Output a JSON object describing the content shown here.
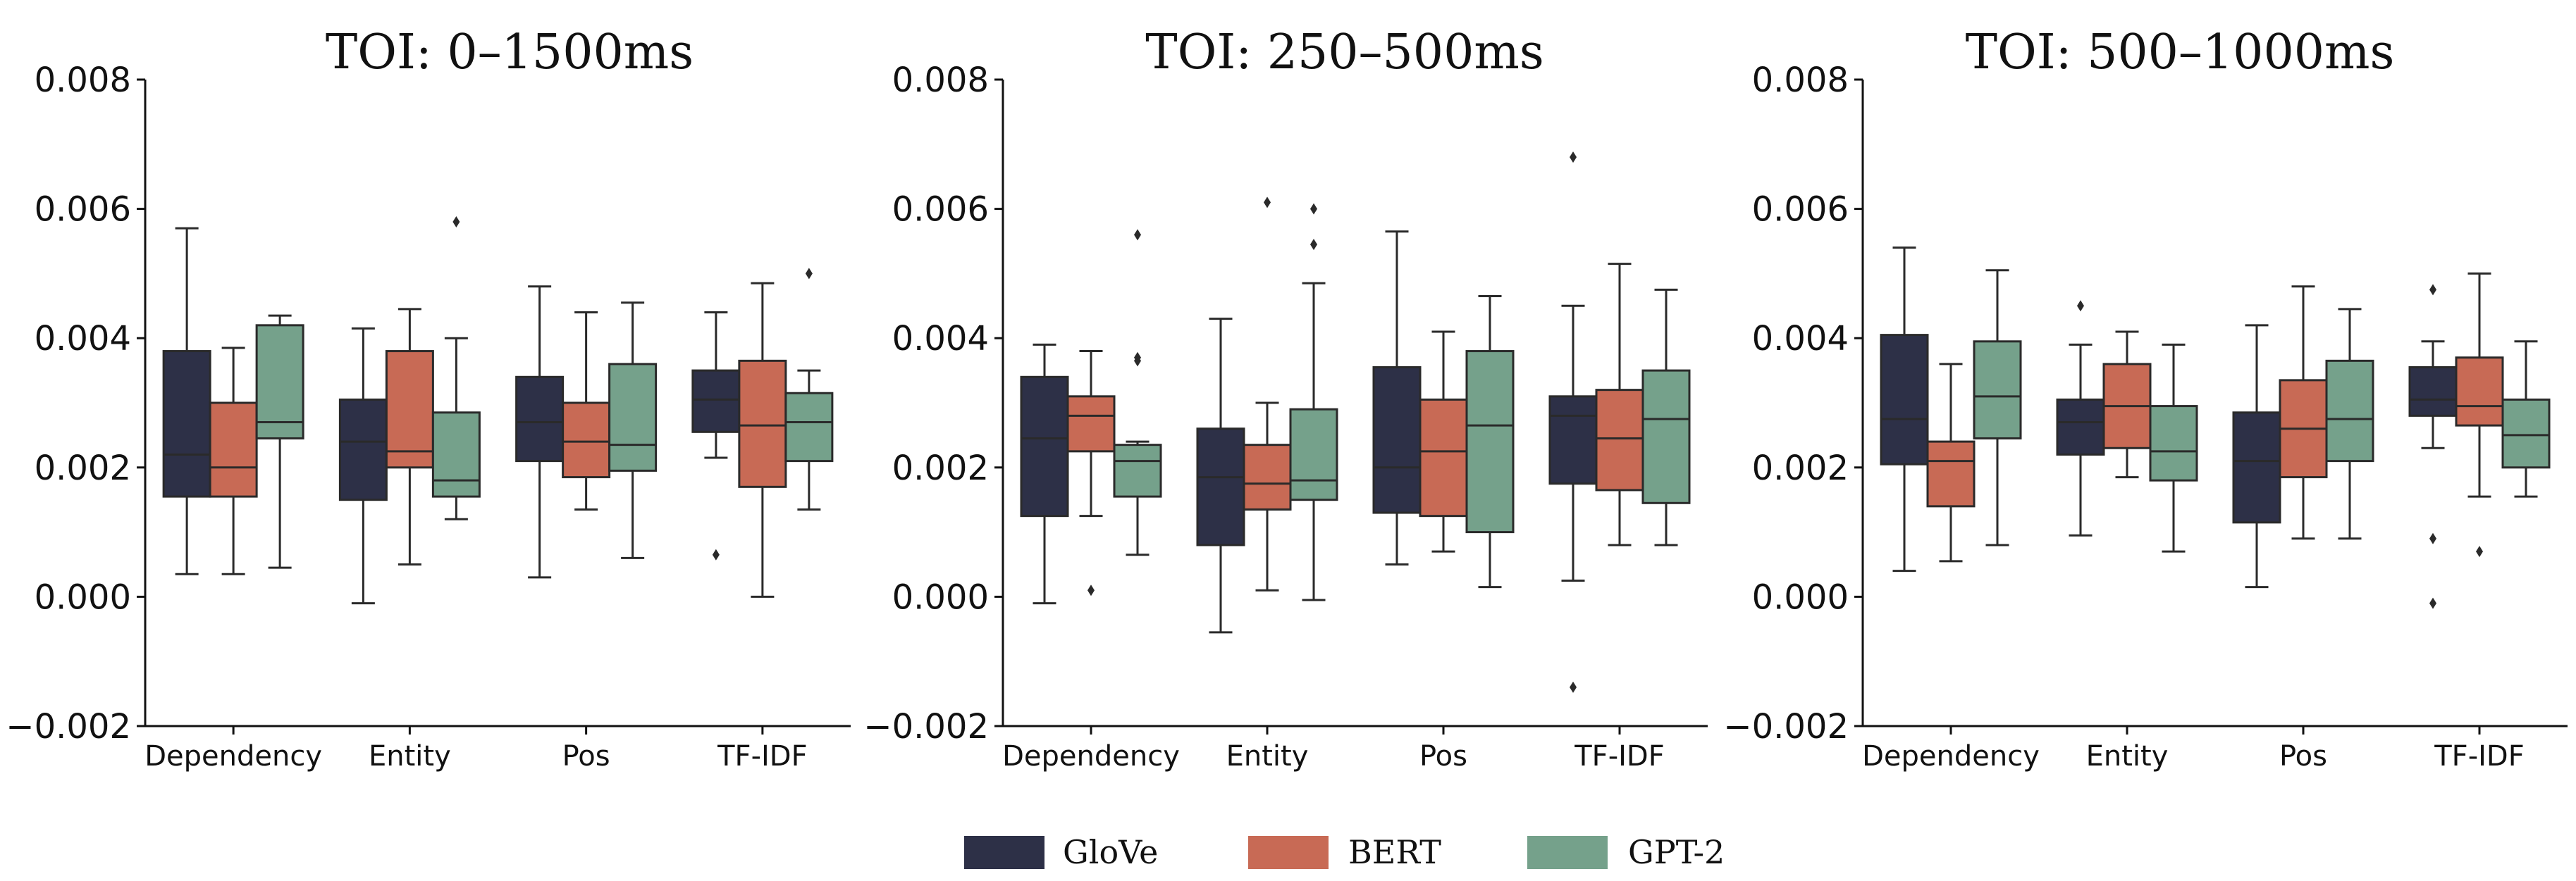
{
  "chart_data": [
    {
      "type": "box",
      "title": "TOI: 0–1500ms",
      "xlabel": "",
      "ylabel": "",
      "ylim": [
        -0.002,
        0.008
      ],
      "yticks": [
        "0.008",
        "0.006",
        "0.004",
        "0.002",
        "0.000",
        "−0.002"
      ],
      "categories": [
        "Dependency",
        "Entity",
        "Pos",
        "TF-IDF"
      ],
      "series": [
        {
          "name": "GloVe",
          "boxes": [
            {
              "q1": 0.00155,
              "median": 0.0022,
              "q3": 0.0038,
              "whislo": 0.00035,
              "whishi": 0.0057,
              "fliers": []
            },
            {
              "q1": 0.0015,
              "median": 0.0024,
              "q3": 0.00305,
              "whislo": -0.0001,
              "whishi": 0.00415,
              "fliers": []
            },
            {
              "q1": 0.0021,
              "median": 0.0027,
              "q3": 0.0034,
              "whislo": 0.0003,
              "whishi": 0.0048,
              "fliers": []
            },
            {
              "q1": 0.00255,
              "median": 0.00305,
              "q3": 0.0035,
              "whislo": 0.00215,
              "whishi": 0.0044,
              "fliers": [
                0.00065
              ]
            }
          ]
        },
        {
          "name": "BERT",
          "boxes": [
            {
              "q1": 0.00155,
              "median": 0.002,
              "q3": 0.003,
              "whislo": 0.00035,
              "whishi": 0.00385,
              "fliers": []
            },
            {
              "q1": 0.002,
              "median": 0.00225,
              "q3": 0.0038,
              "whislo": 0.0005,
              "whishi": 0.00445,
              "fliers": []
            },
            {
              "q1": 0.00185,
              "median": 0.0024,
              "q3": 0.003,
              "whislo": 0.00135,
              "whishi": 0.0044,
              "fliers": []
            },
            {
              "q1": 0.0017,
              "median": 0.00265,
              "q3": 0.00365,
              "whislo": 0.0,
              "whishi": 0.00485,
              "fliers": []
            }
          ]
        },
        {
          "name": "GPT-2",
          "boxes": [
            {
              "q1": 0.00245,
              "median": 0.0027,
              "q3": 0.0042,
              "whislo": 0.00045,
              "whishi": 0.00435,
              "fliers": []
            },
            {
              "q1": 0.00155,
              "median": 0.0018,
              "q3": 0.00285,
              "whislo": 0.0012,
              "whishi": 0.004,
              "fliers": [
                0.0058
              ]
            },
            {
              "q1": 0.00195,
              "median": 0.00235,
              "q3": 0.0036,
              "whislo": 0.0006,
              "whishi": 0.00455,
              "fliers": []
            },
            {
              "q1": 0.0021,
              "median": 0.0027,
              "q3": 0.00315,
              "whislo": 0.00135,
              "whishi": 0.0035,
              "fliers": [
                0.005
              ]
            }
          ]
        }
      ]
    },
    {
      "type": "box",
      "title": "TOI: 250–500ms",
      "xlabel": "",
      "ylabel": "",
      "ylim": [
        -0.002,
        0.008
      ],
      "yticks": [
        "0.008",
        "0.006",
        "0.004",
        "0.002",
        "0.000",
        "−0.002"
      ],
      "categories": [
        "Dependency",
        "Entity",
        "Pos",
        "TF-IDF"
      ],
      "series": [
        {
          "name": "GloVe",
          "boxes": [
            {
              "q1": 0.00125,
              "median": 0.00245,
              "q3": 0.0034,
              "whislo": -0.0001,
              "whishi": 0.0039,
              "fliers": []
            },
            {
              "q1": 0.0008,
              "median": 0.00185,
              "q3": 0.0026,
              "whislo": -0.00055,
              "whishi": 0.0043,
              "fliers": []
            },
            {
              "q1": 0.0013,
              "median": 0.002,
              "q3": 0.00355,
              "whislo": 0.0005,
              "whishi": 0.00565,
              "fliers": []
            },
            {
              "q1": 0.00175,
              "median": 0.0028,
              "q3": 0.0031,
              "whislo": 0.00025,
              "whishi": 0.0045,
              "fliers": [
                0.0068,
                -0.0014
              ]
            }
          ]
        },
        {
          "name": "BERT",
          "boxes": [
            {
              "q1": 0.00225,
              "median": 0.0028,
              "q3": 0.0031,
              "whislo": 0.00125,
              "whishi": 0.0038,
              "fliers": [
                0.0001
              ]
            },
            {
              "q1": 0.00135,
              "median": 0.00175,
              "q3": 0.00235,
              "whislo": 0.0001,
              "whishi": 0.003,
              "fliers": [
                0.0061
              ]
            },
            {
              "q1": 0.00125,
              "median": 0.00225,
              "q3": 0.00305,
              "whislo": 0.0007,
              "whishi": 0.0041,
              "fliers": []
            },
            {
              "q1": 0.00165,
              "median": 0.00245,
              "q3": 0.0032,
              "whislo": 0.0008,
              "whishi": 0.00515,
              "fliers": []
            }
          ]
        },
        {
          "name": "GPT-2",
          "boxes": [
            {
              "q1": 0.00155,
              "median": 0.0021,
              "q3": 0.00235,
              "whislo": 0.00065,
              "whishi": 0.0024,
              "fliers": [
                0.0056,
                0.0037,
                0.00365
              ]
            },
            {
              "q1": 0.0015,
              "median": 0.0018,
              "q3": 0.0029,
              "whislo": -5e-05,
              "whishi": 0.00485,
              "fliers": [
                0.006,
                0.00545
              ]
            },
            {
              "q1": 0.001,
              "median": 0.00265,
              "q3": 0.0038,
              "whislo": 0.00015,
              "whishi": 0.00465,
              "fliers": []
            },
            {
              "q1": 0.00145,
              "median": 0.00275,
              "q3": 0.0035,
              "whislo": 0.0008,
              "whishi": 0.00475,
              "fliers": []
            }
          ]
        }
      ]
    },
    {
      "type": "box",
      "title": "TOI: 500–1000ms",
      "xlabel": "",
      "ylabel": "",
      "ylim": [
        -0.002,
        0.008
      ],
      "yticks": [
        "0.008",
        "0.006",
        "0.004",
        "0.002",
        "0.000",
        "−0.002"
      ],
      "categories": [
        "Dependency",
        "Entity",
        "Pos",
        "TF-IDF"
      ],
      "series": [
        {
          "name": "GloVe",
          "boxes": [
            {
              "q1": 0.00205,
              "median": 0.00275,
              "q3": 0.00405,
              "whislo": 0.0004,
              "whishi": 0.0054,
              "fliers": []
            },
            {
              "q1": 0.0022,
              "median": 0.0027,
              "q3": 0.00305,
              "whislo": 0.00095,
              "whishi": 0.0039,
              "fliers": [
                0.0045
              ]
            },
            {
              "q1": 0.00115,
              "median": 0.0021,
              "q3": 0.00285,
              "whislo": 0.00015,
              "whishi": 0.0042,
              "fliers": []
            },
            {
              "q1": 0.0028,
              "median": 0.00305,
              "q3": 0.00355,
              "whislo": 0.0023,
              "whishi": 0.00395,
              "fliers": [
                0.00475,
                0.0009,
                -0.0001
              ]
            }
          ]
        },
        {
          "name": "BERT",
          "boxes": [
            {
              "q1": 0.0014,
              "median": 0.0021,
              "q3": 0.0024,
              "whislo": 0.00055,
              "whishi": 0.0036,
              "fliers": []
            },
            {
              "q1": 0.0023,
              "median": 0.00295,
              "q3": 0.0036,
              "whislo": 0.00185,
              "whishi": 0.0041,
              "fliers": []
            },
            {
              "q1": 0.00185,
              "median": 0.0026,
              "q3": 0.00335,
              "whislo": 0.0009,
              "whishi": 0.0048,
              "fliers": []
            },
            {
              "q1": 0.00265,
              "median": 0.00295,
              "q3": 0.0037,
              "whislo": 0.00155,
              "whishi": 0.005,
              "fliers": [
                0.0007
              ]
            }
          ]
        },
        {
          "name": "GPT-2",
          "boxes": [
            {
              "q1": 0.00245,
              "median": 0.0031,
              "q3": 0.00395,
              "whislo": 0.0008,
              "whishi": 0.00505,
              "fliers": []
            },
            {
              "q1": 0.0018,
              "median": 0.00225,
              "q3": 0.00295,
              "whislo": 0.0007,
              "whishi": 0.0039,
              "fliers": []
            },
            {
              "q1": 0.0021,
              "median": 0.00275,
              "q3": 0.00365,
              "whislo": 0.0009,
              "whishi": 0.00445,
              "fliers": []
            },
            {
              "q1": 0.002,
              "median": 0.0025,
              "q3": 0.00305,
              "whislo": 0.00155,
              "whishi": 0.00395,
              "fliers": []
            }
          ]
        }
      ]
    }
  ],
  "legend": {
    "position": "bottom-center",
    "items": [
      {
        "label": "GloVe",
        "color": "#2d3047"
      },
      {
        "label": "BERT",
        "color": "#c86a55"
      },
      {
        "label": "GPT-2",
        "color": "#75a18b"
      }
    ]
  },
  "colors": {
    "GloVe": "#2d3047",
    "BERT": "#c86a55",
    "GPT-2": "#75a18b",
    "line": "#2a2a2a",
    "axis": "#111111"
  }
}
